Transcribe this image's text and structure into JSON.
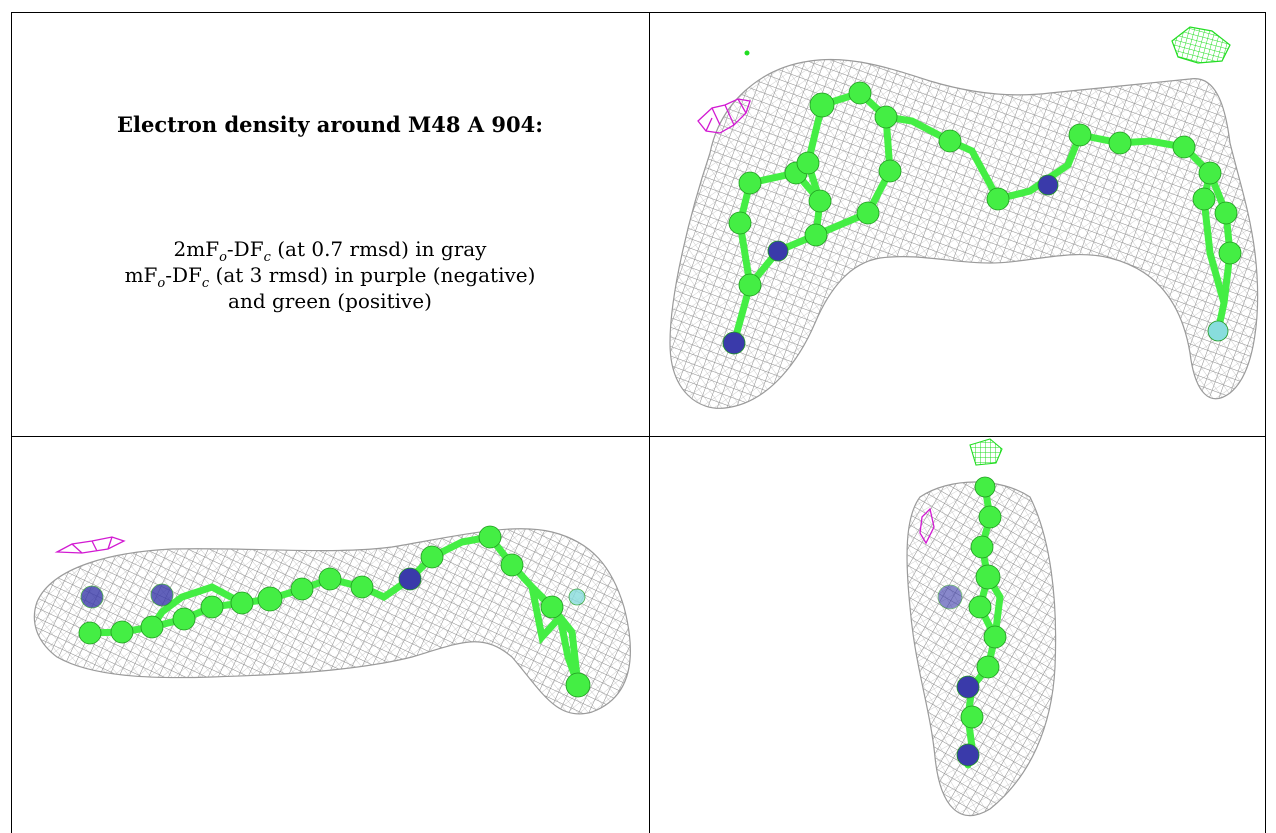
{
  "caption": {
    "title": "Electron density around M48 A 904:",
    "line1": "2mF",
    "line1_sub1": "o",
    "line1_mid": "-DF",
    "line1_sub2": "c",
    "line1_tail": " (at 0.7 rmsd) in gray",
    "line2": "mF",
    "line2_sub1": "o",
    "line2_mid": "-DF",
    "line2_sub2": "c",
    "line2_tail": " (at 3 rmsd) in purple (negative)",
    "line3": "and green (positive)"
  },
  "colors": {
    "mesh_2fofc": "#8a8a8a",
    "mesh_negative": "#d21ad2",
    "mesh_positive": "#22dd22",
    "carbon": "#44ee44",
    "nitrogen": "#3a3aaa",
    "fluorine": "#88dddd",
    "border": "#000000"
  },
  "panels": [
    {
      "name": "top-right",
      "view": "front"
    },
    {
      "name": "bottom-left",
      "view": "side"
    },
    {
      "name": "bottom-right",
      "view": "end-on"
    }
  ]
}
